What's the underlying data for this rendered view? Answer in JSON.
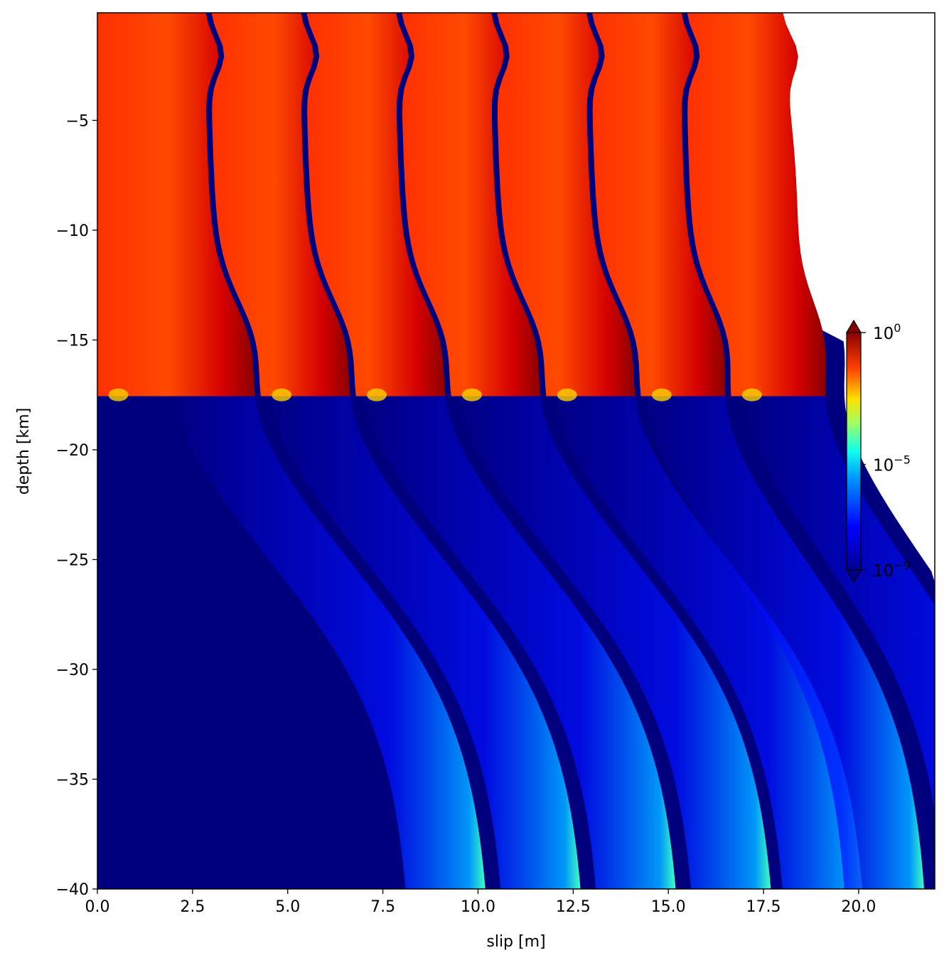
{
  "chart_data": {
    "type": "heatmap",
    "title": "",
    "xlabel": "slip [m]",
    "ylabel": "depth [km]",
    "xlim": [
      0,
      22
    ],
    "ylim": [
      -40,
      -0.1
    ],
    "x_ticks": [
      "0.0",
      "2.5",
      "5.0",
      "7.5",
      "10.0",
      "12.5",
      "15.0",
      "17.5",
      "20.0"
    ],
    "x_tick_values": [
      0,
      2.5,
      5,
      7.5,
      10,
      12.5,
      15,
      17.5,
      20
    ],
    "y_ticks": [
      "−5",
      "−10",
      "−15",
      "−20",
      "−25",
      "−30",
      "−35",
      "−40"
    ],
    "y_tick_values": [
      -5,
      -10,
      -15,
      -20,
      -25,
      -30,
      -35,
      -40
    ],
    "colorbar": {
      "scale": "log",
      "colormap": "jet",
      "range": [
        1e-09,
        1
      ],
      "extend": "both",
      "ticks": [
        {
          "base": "10",
          "exp": "0",
          "value": 1
        },
        {
          "base": "10",
          "exp": "−5",
          "value": 1e-05
        },
        {
          "base": "10",
          "exp": "−9",
          "value": 1e-09
        }
      ]
    },
    "background_color": "#00007f",
    "seismic_cycles": [
      {
        "slip_start_top": 0.0,
        "slip_front_deep": 8.0
      },
      {
        "slip_start_top": 2.8,
        "slip_front_deep": 10.4
      },
      {
        "slip_start_top": 5.3,
        "slip_front_deep": 12.9
      },
      {
        "slip_start_top": 7.8,
        "slip_front_deep": 15.4
      },
      {
        "slip_start_top": 10.3,
        "slip_front_deep": 17.9
      },
      {
        "slip_start_top": 12.8,
        "slip_front_deep": 20.3
      },
      {
        "slip_start_top": 15.3,
        "slip_front_deep": 21.9
      }
    ]
  }
}
